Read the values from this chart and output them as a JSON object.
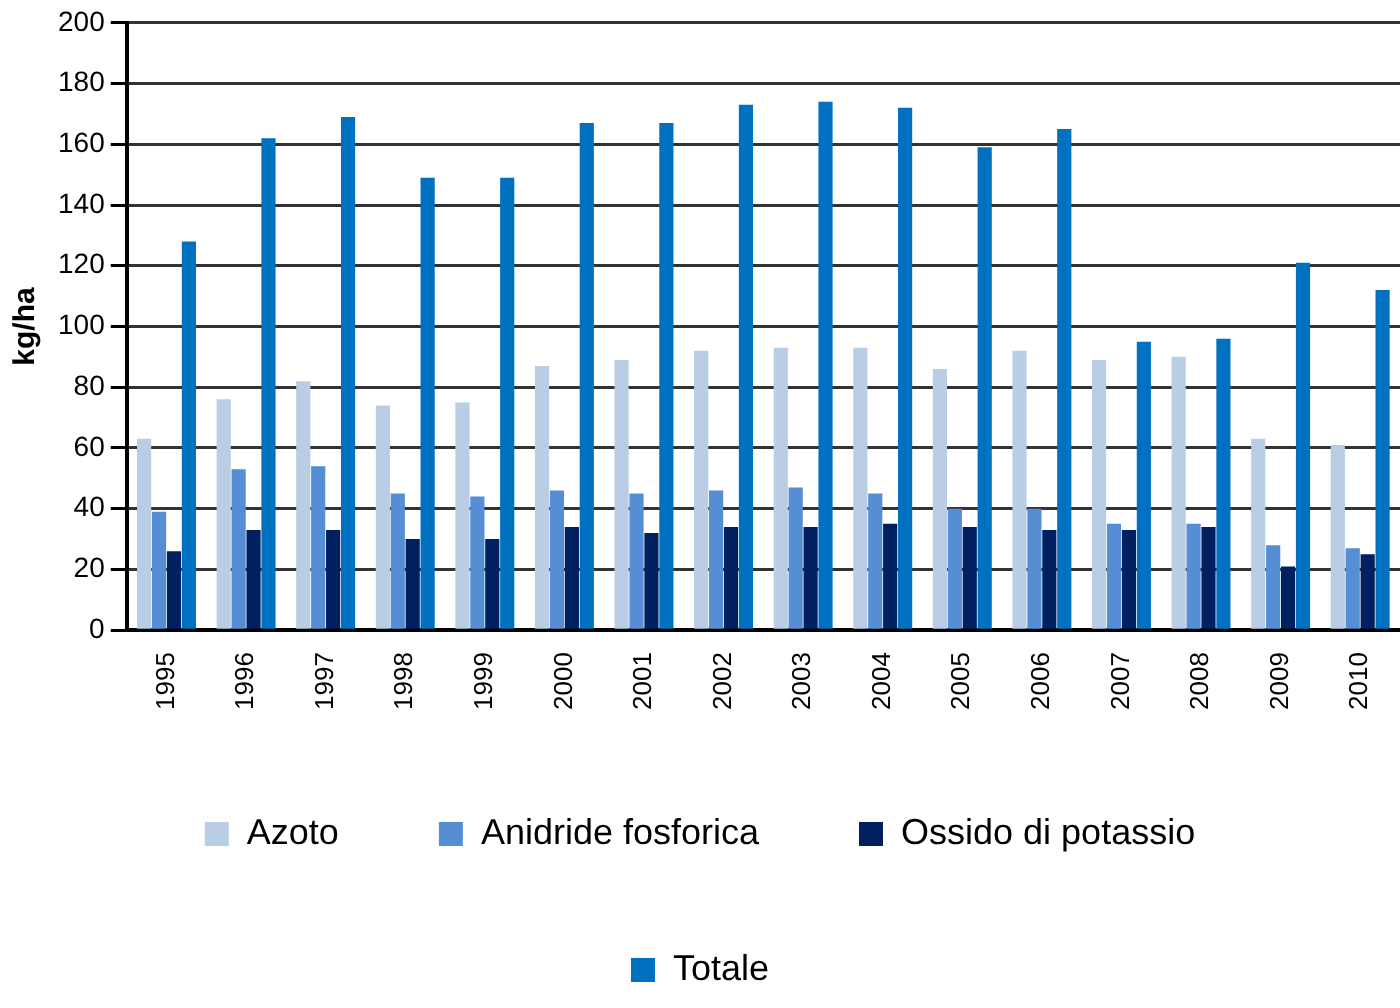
{
  "chart_data": {
    "type": "bar",
    "ylabel": "kg/ha",
    "categories": [
      "1995",
      "1996",
      "1997",
      "1998",
      "1999",
      "2000",
      "2001",
      "2002",
      "2003",
      "2004",
      "2005",
      "2006",
      "2007",
      "2008",
      "2009",
      "2010"
    ],
    "series": [
      {
        "name": "Azoto",
        "color": "#b9cde5",
        "values": [
          63,
          76,
          82,
          74,
          75,
          87,
          89,
          92,
          93,
          93,
          86,
          92,
          89,
          90,
          63,
          61
        ]
      },
      {
        "name": "Anidride fosforica",
        "color": "#558ed5",
        "values": [
          39,
          53,
          54,
          45,
          44,
          46,
          45,
          46,
          47,
          45,
          40,
          40,
          35,
          35,
          28,
          27
        ]
      },
      {
        "name": "Ossido di potassio",
        "color": "#002060",
        "values": [
          26,
          33,
          33,
          30,
          30,
          34,
          32,
          34,
          34,
          35,
          34,
          33,
          33,
          34,
          21,
          25
        ]
      },
      {
        "name": "Totale",
        "color": "#0070c0",
        "values": [
          128,
          162,
          169,
          149,
          149,
          167,
          167,
          173,
          174,
          172,
          159,
          165,
          95,
          96,
          121,
          112
        ]
      }
    ],
    "ylim": [
      0,
      200
    ],
    "yticks": [
      0,
      20,
      40,
      60,
      80,
      100,
      120,
      140,
      160,
      180,
      200
    ],
    "grid": "y",
    "legend": "bottom"
  }
}
